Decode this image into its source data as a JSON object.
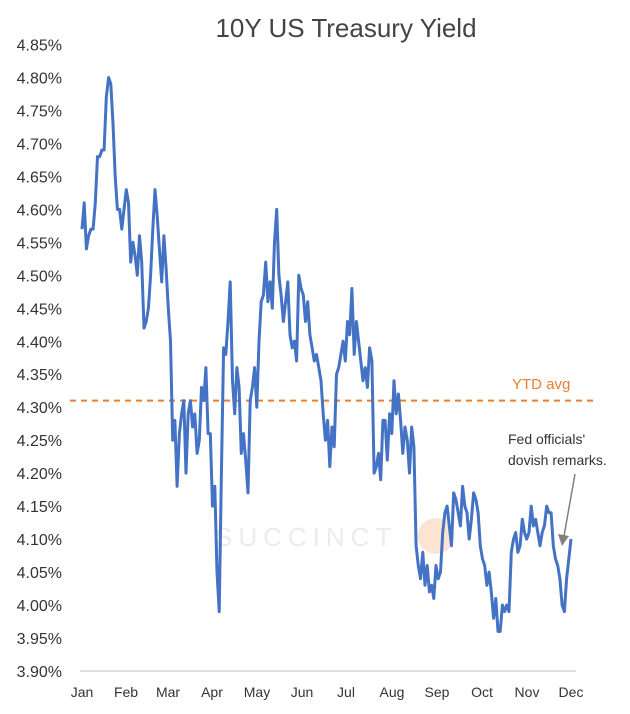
{
  "chart_data": {
    "type": "line",
    "title": "10Y US Treasury Yield",
    "xlabel": "",
    "ylabel": "",
    "ylim": [
      3.9,
      4.85
    ],
    "y_ticks": [
      "3.90%",
      "3.95%",
      "4.00%",
      "4.05%",
      "4.10%",
      "4.15%",
      "4.20%",
      "4.25%",
      "4.30%",
      "4.35%",
      "4.40%",
      "4.45%",
      "4.50%",
      "4.55%",
      "4.60%",
      "4.65%",
      "4.70%",
      "4.75%",
      "4.80%",
      "4.85%"
    ],
    "y_tick_values": [
      3.9,
      3.95,
      4.0,
      4.05,
      4.1,
      4.15,
      4.2,
      4.25,
      4.3,
      4.35,
      4.4,
      4.45,
      4.5,
      4.55,
      4.6,
      4.65,
      4.7,
      4.75,
      4.8,
      4.85
    ],
    "x_ticks": [
      "Jan",
      "Feb",
      "Mar",
      "Apr",
      "May",
      "Jun",
      "Jul",
      "Aug",
      "Sep",
      "Oct",
      "Nov",
      "Dec"
    ],
    "grid": false,
    "series": [
      {
        "values": [
          4.57,
          4.61,
          4.54,
          4.56,
          4.57,
          4.57,
          4.61,
          4.68,
          4.68,
          4.69,
          4.69,
          4.77,
          4.8,
          4.79,
          4.73,
          4.65,
          4.6,
          4.6,
          4.57,
          4.6,
          4.63,
          4.61,
          4.52,
          4.55,
          4.53,
          4.5,
          4.56,
          4.52,
          4.42,
          4.43,
          4.45,
          4.5,
          4.57,
          4.63,
          4.59,
          4.54,
          4.49,
          4.56,
          4.51,
          4.45,
          4.4,
          4.25,
          4.28,
          4.18,
          4.26,
          4.29,
          4.31,
          4.2,
          4.29,
          4.31,
          4.27,
          4.29,
          4.23,
          4.25,
          4.33,
          4.31,
          4.36,
          4.26,
          4.26,
          4.15,
          4.18,
          4.05,
          3.99,
          4.2,
          4.39,
          4.38,
          4.43,
          4.49,
          4.34,
          4.29,
          4.36,
          4.33,
          4.23,
          4.26,
          4.22,
          4.17,
          4.31,
          4.33,
          4.36,
          4.3,
          4.4,
          4.46,
          4.47,
          4.52,
          4.46,
          4.49,
          4.45,
          4.55,
          4.6,
          4.5,
          4.47,
          4.43,
          4.46,
          4.49,
          4.41,
          4.39,
          4.4,
          4.37,
          4.5,
          4.48,
          4.47,
          4.43,
          4.46,
          4.41,
          4.39,
          4.37,
          4.38,
          4.36,
          4.34,
          4.29,
          4.25,
          4.28,
          4.21,
          4.27,
          4.24,
          4.35,
          4.36,
          4.38,
          4.4,
          4.37,
          4.43,
          4.41,
          4.48,
          4.38,
          4.43,
          4.4,
          4.37,
          4.34,
          4.36,
          4.33,
          4.39,
          4.37,
          4.2,
          4.21,
          4.23,
          4.19,
          4.28,
          4.28,
          4.22,
          4.29,
          4.26,
          4.34,
          4.29,
          4.32,
          4.28,
          4.23,
          4.27,
          4.25,
          4.2,
          4.27,
          4.24,
          4.09,
          4.06,
          4.04,
          4.08,
          4.03,
          4.06,
          4.02,
          4.03,
          4.01,
          4.06,
          4.04,
          4.05,
          4.11,
          4.14,
          4.15,
          4.12,
          4.09,
          4.17,
          4.16,
          4.14,
          4.12,
          4.18,
          4.15,
          4.14,
          4.1,
          4.13,
          4.17,
          4.16,
          4.14,
          4.09,
          4.07,
          4.06,
          4.03,
          4.05,
          4.02,
          3.98,
          4.01,
          3.96,
          3.96,
          4.0,
          3.99,
          4.0,
          3.99,
          4.08,
          4.1,
          4.11,
          4.08,
          4.09,
          4.13,
          4.11,
          4.1,
          4.11,
          4.15,
          4.12,
          4.13,
          4.11,
          4.09,
          4.11,
          4.12,
          4.15,
          4.14,
          4.14,
          4.09,
          4.07,
          4.06,
          4.04,
          4.0,
          3.99,
          4.04,
          4.07,
          4.1
        ]
      }
    ],
    "ytd_avg": 4.31,
    "ytd_label": "YTD avg",
    "annotation": "Fed officials'\ndovish remarks.",
    "watermark": "SUCCINCT",
    "line_color": "#4472c4",
    "avg_color": "#ed7d31",
    "axis_color": "#bfbfbf",
    "arrow_color": "#808080"
  }
}
